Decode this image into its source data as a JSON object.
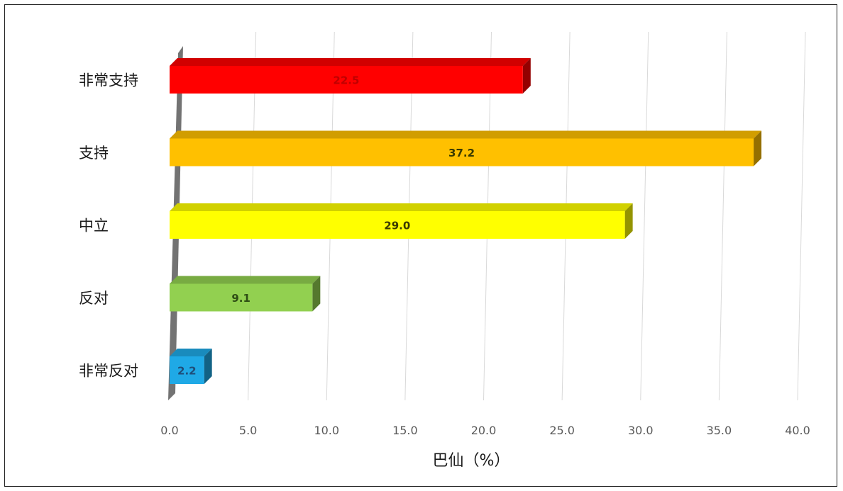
{
  "chart_data": {
    "type": "bar",
    "orientation": "horizontal",
    "categories": [
      "非常支持",
      "支持",
      "中立",
      "反对",
      "非常反对"
    ],
    "values": [
      22.5,
      37.2,
      29.0,
      9.1,
      2.2
    ],
    "value_labels": [
      "22.5",
      "37.2",
      "29.0",
      "9.1",
      "2.2"
    ],
    "colors": [
      "#ff0000",
      "#ffc000",
      "#ffff00",
      "#92d050",
      "#1fa9e6"
    ],
    "xlabel": "巴仙（%）",
    "xlim": [
      0,
      40
    ],
    "xticks": [
      "0.0",
      "5.0",
      "10.0",
      "15.0",
      "20.0",
      "25.0",
      "30.0",
      "35.0",
      "40.0"
    ],
    "grid": true,
    "legend": "none"
  }
}
